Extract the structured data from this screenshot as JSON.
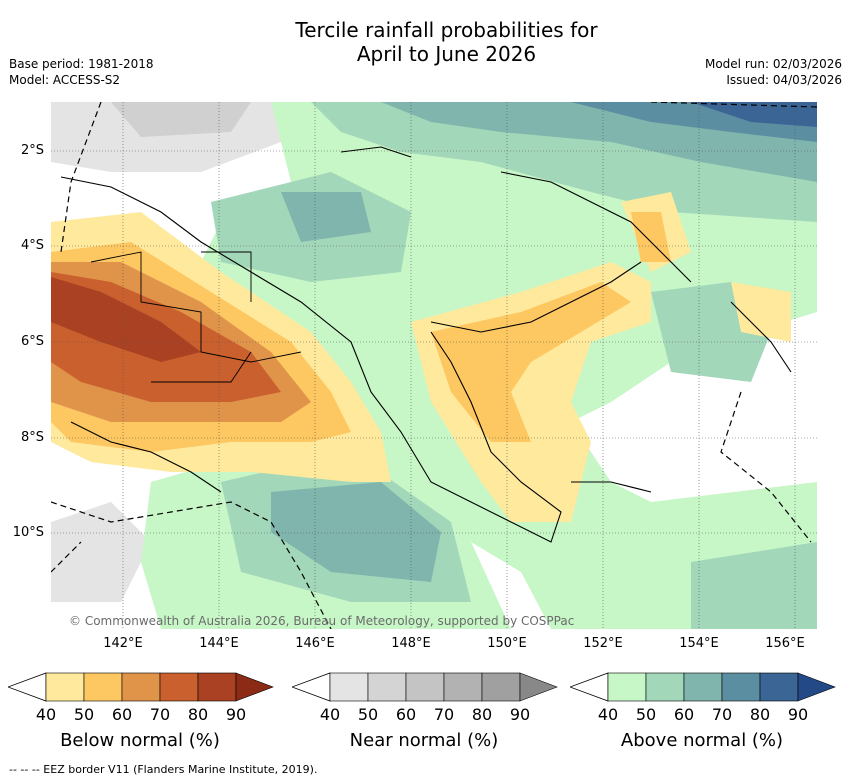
{
  "title_line1": "Tercile rainfall probabilities for",
  "title_line2": "April to June 2026",
  "base_period": "Base period: 1981-2018",
  "model": "Model: ACCESS-S2",
  "model_run": "Model run: 02/03/2026",
  "issued": "Issued: 04/03/2026",
  "copyright": "© Commonwealth of Australia 2026, Bureau of Meteorology, supported by COSPPac",
  "lat_labels": [
    "2°S",
    "4°S",
    "6°S",
    "8°S",
    "10°S"
  ],
  "lon_labels": [
    "142°E",
    "144°E",
    "146°E",
    "148°E",
    "150°E",
    "152°E",
    "154°E",
    "156°E"
  ],
  "colorbars": [
    {
      "label": "Below normal (%)",
      "ticks": [
        "40",
        "50",
        "60",
        "70",
        "80",
        "90"
      ],
      "colors": [
        "#fee99c",
        "#fdc762",
        "#e0944a",
        "#c9602e",
        "#a94122",
        "#8b2b16"
      ]
    },
    {
      "label": "Near normal (%)",
      "ticks": [
        "40",
        "50",
        "60",
        "70",
        "80",
        "90"
      ],
      "colors": [
        "#e4e4e4",
        "#d4d4d4",
        "#c4c4c4",
        "#b2b2b2",
        "#a0a0a0",
        "#888888"
      ]
    },
    {
      "label": "Above normal (%)",
      "ticks": [
        "40",
        "50",
        "60",
        "70",
        "80",
        "90"
      ],
      "colors": [
        "#c7f6c7",
        "#a2d7b9",
        "#80b5ad",
        "#5b8ea1",
        "#3a6595",
        "#234a86"
      ]
    }
  ],
  "eez_note": "-- -- -- EEZ border V11 (Flanders Marine Institute, 2019)."
}
